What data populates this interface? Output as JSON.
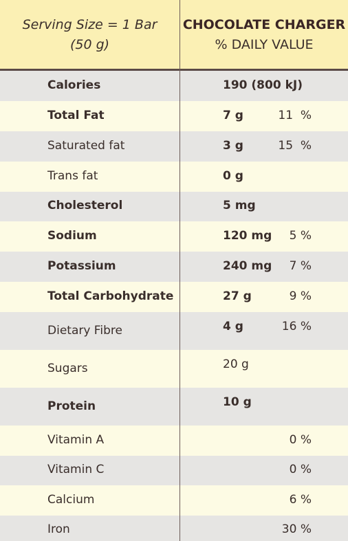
{
  "header": {
    "serving_line1": "Serving Size = 1 Bar",
    "serving_line2": "(50 g)",
    "product_name": "CHOCOLATE CHARGER",
    "column_label": "% DAILY VALUE"
  },
  "rows": [
    {
      "name": "Calories",
      "amount": "190 (800 kJ)",
      "pct": ""
    },
    {
      "name": "Total Fat",
      "amount": "7 g",
      "pct": "11  %"
    },
    {
      "name": "Saturated fat",
      "amount": "3 g",
      "pct": "15  %"
    },
    {
      "name": "Trans fat",
      "amount": "0 g",
      "pct": ""
    },
    {
      "name": "Cholesterol",
      "amount": "5 mg",
      "pct": ""
    },
    {
      "name": "Sodium",
      "amount": "120 mg",
      "pct": "5 %"
    },
    {
      "name": "Potassium",
      "amount": "240 mg",
      "pct": "7 %"
    },
    {
      "name": "Total Carbohydrate",
      "amount": "27 g",
      "pct": "9 %"
    },
    {
      "name": "Dietary Fibre",
      "amount": "4 g",
      "pct": "16 %"
    },
    {
      "name": "Sugars",
      "amount": "20 g",
      "pct": ""
    },
    {
      "name": "Protein",
      "amount": "10 g",
      "pct": ""
    },
    {
      "name": "Vitamin A",
      "amount": "",
      "pct": "0 %"
    },
    {
      "name": "Vitamin C",
      "amount": "",
      "pct": "0 %"
    },
    {
      "name": "Calcium",
      "amount": "",
      "pct": "6 %"
    },
    {
      "name": "Iron",
      "amount": "",
      "pct": "30 %"
    }
  ]
}
